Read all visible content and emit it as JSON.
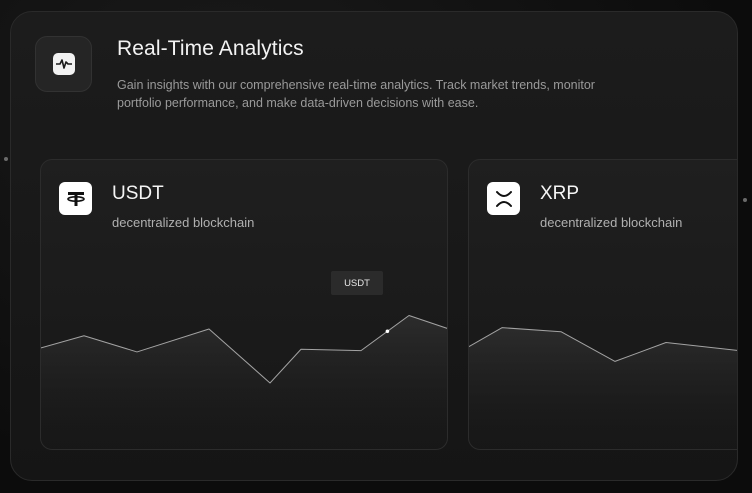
{
  "header": {
    "icon": "activity-pulse-icon",
    "title": "Real-Time Analytics",
    "description": "Gain insights with our comprehensive real-time analytics. Track market trends, monitor portfolio performance, and make data-driven decisions with ease."
  },
  "cards": [
    {
      "name": "USDT",
      "description": "decentralized blockchain",
      "logo_icon": "tether-icon",
      "tooltip": "USDT",
      "trend": [
        0.46,
        0.55,
        0.43,
        0.6,
        0.2,
        0.45,
        0.44,
        0.7,
        0.6
      ]
    },
    {
      "name": "XRP",
      "description": "decentralized blockchain",
      "logo_icon": "xrp-icon",
      "trend": [
        0.47,
        0.61,
        0.58,
        0.36,
        0.5,
        0.44,
        0.43
      ]
    }
  ],
  "colors": {
    "line": "#a3a3a3",
    "fill_top": "#2e2e2e",
    "accent": "#ffffff"
  }
}
